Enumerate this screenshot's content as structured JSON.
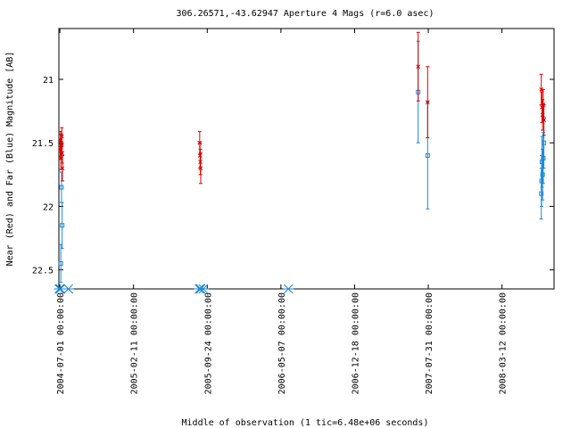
{
  "chart_data": {
    "type": "scatter",
    "title": "306.26571,-43.62947   Aperture 4 Mags (r=6.0 asec)",
    "xlabel": "Middle of observation (1 tic=6.48e+06 seconds)",
    "ylabel": "Near (Red) and Far (Blue) Magnitude [AB]",
    "y_inverted": true,
    "ylim": [
      22.65,
      20.6
    ],
    "xlim": [
      "2004-06-28",
      "2008-08-18"
    ],
    "x_ticks": [
      "2004-07-01 00:00:00",
      "2005-02-11 00:00:00",
      "2005-09-24 00:00:00",
      "2006-05-07 00:00:00",
      "2006-12-18 00:00:00",
      "2007-07-31 00:00:00",
      "2008-03-12 00:00:00"
    ],
    "y_ticks": [
      "21",
      "21.5",
      "22",
      "22.5"
    ],
    "grid": false,
    "legend": "none",
    "colors": {
      "near": "#dd0000",
      "far": "#1e88d8",
      "axes": "#000000"
    },
    "series": [
      {
        "name": "Near (Red)",
        "marker": "x",
        "points": [
          {
            "x": "2004-07-02",
            "y": 21.55,
            "err": 0.08
          },
          {
            "x": "2004-07-03",
            "y": 21.48,
            "err": 0.07
          },
          {
            "x": "2004-07-04",
            "y": 21.62,
            "err": 0.09
          },
          {
            "x": "2004-07-05",
            "y": 21.5,
            "err": 0.07
          },
          {
            "x": "2004-07-06",
            "y": 21.52,
            "err": 0.08
          },
          {
            "x": "2004-07-07",
            "y": 21.45,
            "err": 0.07
          },
          {
            "x": "2004-07-08",
            "y": 21.58,
            "err": 0.08
          },
          {
            "x": "2004-07-09",
            "y": 21.7,
            "err": 0.1
          },
          {
            "x": "2005-09-01",
            "y": 21.5,
            "err": 0.09
          },
          {
            "x": "2005-09-02",
            "y": 21.6,
            "err": 0.1
          },
          {
            "x": "2005-09-03",
            "y": 21.65,
            "err": 0.1
          },
          {
            "x": "2005-09-04",
            "y": 21.7,
            "err": 0.12
          },
          {
            "x": "2007-06-30",
            "y": 20.9,
            "err": 0.27
          },
          {
            "x": "2007-07-29",
            "y": 21.18,
            "err": 0.28
          },
          {
            "x": "2008-07-10",
            "y": 21.08,
            "err": 0.12
          },
          {
            "x": "2008-07-12",
            "y": 21.22,
            "err": 0.12
          },
          {
            "x": "2008-07-14",
            "y": 21.28,
            "err": 0.12
          },
          {
            "x": "2008-07-16",
            "y": 21.2,
            "err": 0.12
          },
          {
            "x": "2008-07-18",
            "y": 21.32,
            "err": 0.12
          }
        ]
      },
      {
        "name": "Far (Blue)",
        "marker": "square",
        "points": [
          {
            "x": "2004-07-04",
            "y": 22.45,
            "err": 0.15
          },
          {
            "x": "2004-07-06",
            "y": 21.85,
            "err": 0.12
          },
          {
            "x": "2004-07-08",
            "y": 22.15,
            "err": 0.18
          },
          {
            "x": "2007-06-30",
            "y": 21.1,
            "err": 0.4
          },
          {
            "x": "2007-07-29",
            "y": 21.6,
            "err": 0.42
          },
          {
            "x": "2008-07-10",
            "y": 21.9,
            "err": 0.2
          },
          {
            "x": "2008-07-11",
            "y": 21.8,
            "err": 0.2
          },
          {
            "x": "2008-07-12",
            "y": 21.65,
            "err": 0.2
          },
          {
            "x": "2008-07-14",
            "y": 21.75,
            "err": 0.2
          },
          {
            "x": "2008-07-16",
            "y": 21.62,
            "err": 0.2
          },
          {
            "x": "2008-07-18",
            "y": 21.5,
            "err": 0.2
          }
        ]
      },
      {
        "name": "Far (Blue) upper limits",
        "marker": "asterisk",
        "points": [
          {
            "x": "2004-06-29",
            "y": 22.65
          },
          {
            "x": "2004-07-01",
            "y": 22.65
          },
          {
            "x": "2004-07-03",
            "y": 22.65
          },
          {
            "x": "2004-07-27",
            "y": 22.65
          },
          {
            "x": "2005-08-31",
            "y": 22.65
          },
          {
            "x": "2005-09-02",
            "y": 22.65
          },
          {
            "x": "2005-09-04",
            "y": 22.65
          },
          {
            "x": "2005-09-12",
            "y": 22.65
          },
          {
            "x": "2006-05-30",
            "y": 22.65
          }
        ]
      }
    ]
  }
}
